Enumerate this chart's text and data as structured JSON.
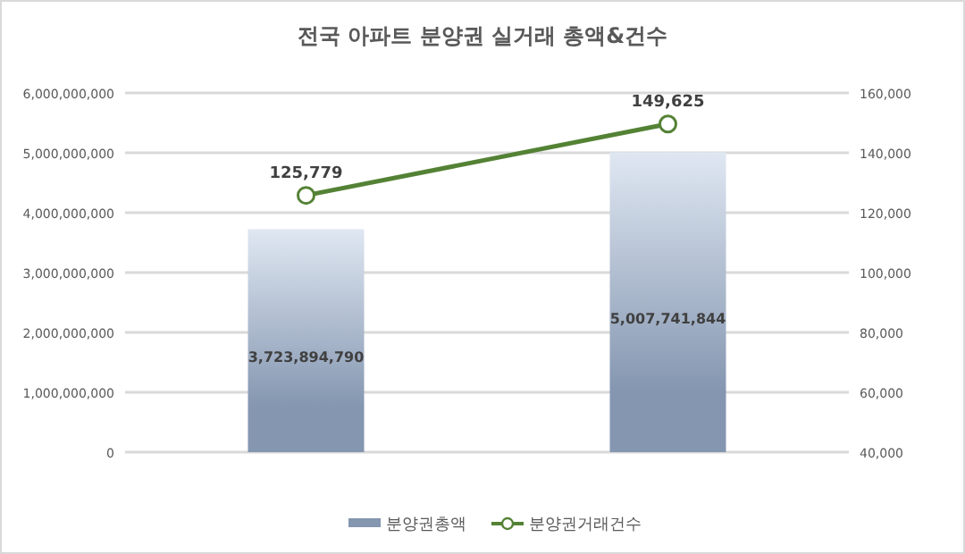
{
  "chart_data": {
    "type": "bar",
    "title": "전국 아파트 분양권 실거래 총액&건수",
    "categories": [
      null,
      null
    ],
    "series": [
      {
        "name": "분양권총액",
        "color": "#8496b0",
        "values": [
          3723894790,
          5007741844
        ],
        "value_labels": [
          "3,723,894,790",
          "5,007,741,844"
        ]
      },
      {
        "name": "분양권거래건수",
        "type": "line",
        "axis": "y2",
        "color": "#548235",
        "marker": "circle",
        "values": [
          125779,
          149625
        ],
        "value_labels": [
          "125,779",
          "149,625"
        ]
      }
    ],
    "ylim": [
      0,
      6000000000
    ],
    "yticks": [
      0,
      {
        "value": 1000000000,
        "label": "1,000,000,000"
      },
      {
        "value": 2000000000,
        "label": "2,000,000,000"
      },
      {
        "value": 3000000000,
        "label": "3,000,000,000"
      },
      {
        "value": 4000000000,
        "label": "4,000,000,000"
      },
      {
        "value": 5000000000,
        "label": "5,000,000,000"
      },
      {
        "value": 6000000000,
        "label": "6,000,000,000"
      }
    ],
    "y2lim": [
      40000,
      160000
    ],
    "y2ticks": [
      {
        "value": 40000,
        "label": "40,000"
      },
      {
        "value": 60000,
        "label": "60,000"
      },
      {
        "value": 80000,
        "label": "80,000"
      },
      {
        "value": 100000,
        "label": "100,000"
      },
      {
        "value": 120000,
        "label": "120,000"
      },
      {
        "value": 140000,
        "label": "140,000"
      },
      {
        "value": 160000,
        "label": "160,000"
      }
    ],
    "grid": "y",
    "legend": "bottom"
  }
}
